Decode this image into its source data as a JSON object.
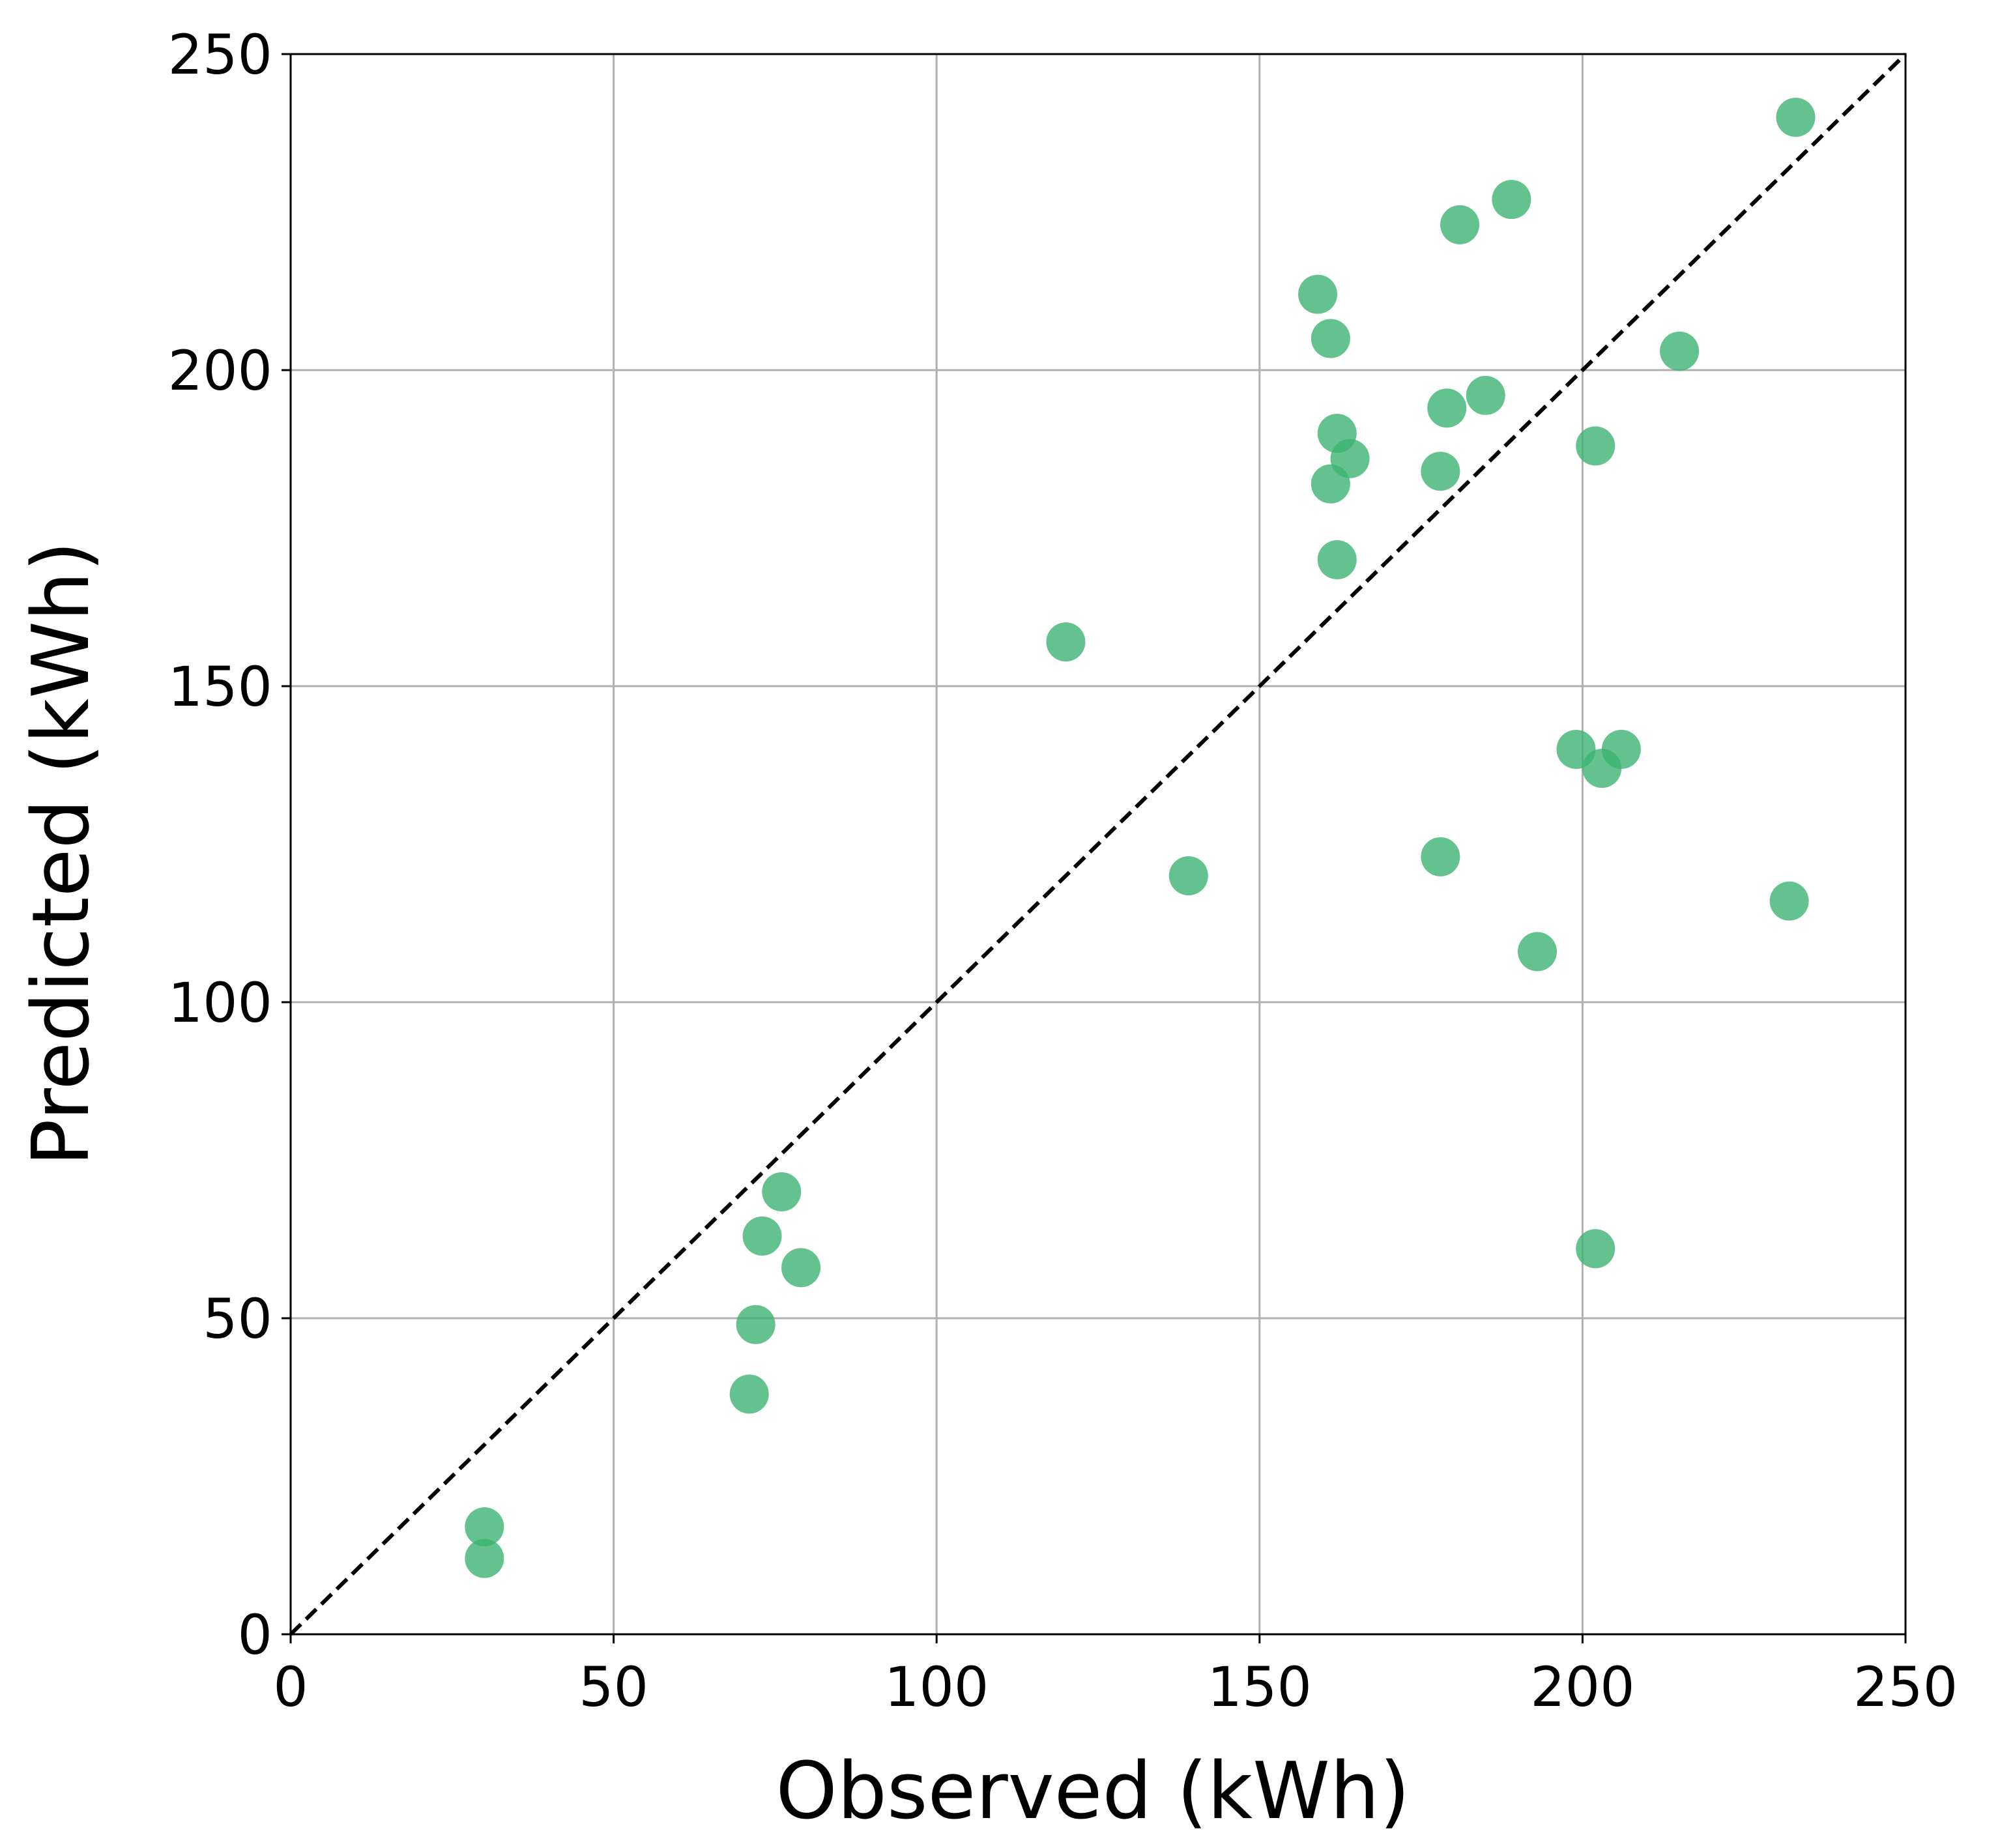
{
  "chart_data": {
    "type": "scatter",
    "title": "",
    "xlabel": "Observed (kWh)",
    "ylabel": "Predicted (kWh)",
    "xlim": [
      0,
      250
    ],
    "ylim": [
      0,
      250
    ],
    "xticks": [
      "0",
      "50",
      "100",
      "150",
      "200",
      "250"
    ],
    "yticks": [
      "0",
      "50",
      "100",
      "150",
      "200",
      "250"
    ],
    "grid": true,
    "reference_line": "y = x (dashed)",
    "colors": {
      "points": "#3cb371",
      "reference_line": "#000000",
      "grid": "#b0b0b0",
      "axes": "#000000"
    },
    "series": [
      {
        "points": [
          {
            "x": 30,
            "y": 17
          },
          {
            "x": 30,
            "y": 12
          },
          {
            "x": 71,
            "y": 38
          },
          {
            "x": 72,
            "y": 49
          },
          {
            "x": 73,
            "y": 63
          },
          {
            "x": 76,
            "y": 70
          },
          {
            "x": 79,
            "y": 58
          },
          {
            "x": 120,
            "y": 157
          },
          {
            "x": 139,
            "y": 120
          },
          {
            "x": 159,
            "y": 212
          },
          {
            "x": 161,
            "y": 205
          },
          {
            "x": 161,
            "y": 182
          },
          {
            "x": 162,
            "y": 190
          },
          {
            "x": 162,
            "y": 170
          },
          {
            "x": 164,
            "y": 186
          },
          {
            "x": 178,
            "y": 184
          },
          {
            "x": 178,
            "y": 123
          },
          {
            "x": 179,
            "y": 194
          },
          {
            "x": 181,
            "y": 223
          },
          {
            "x": 185,
            "y": 196
          },
          {
            "x": 189,
            "y": 227
          },
          {
            "x": 193,
            "y": 108
          },
          {
            "x": 199,
            "y": 140
          },
          {
            "x": 202,
            "y": 188
          },
          {
            "x": 202,
            "y": 61
          },
          {
            "x": 203,
            "y": 137
          },
          {
            "x": 206,
            "y": 140
          },
          {
            "x": 215,
            "y": 203
          },
          {
            "x": 232,
            "y": 116
          },
          {
            "x": 233,
            "y": 240
          }
        ]
      }
    ]
  }
}
